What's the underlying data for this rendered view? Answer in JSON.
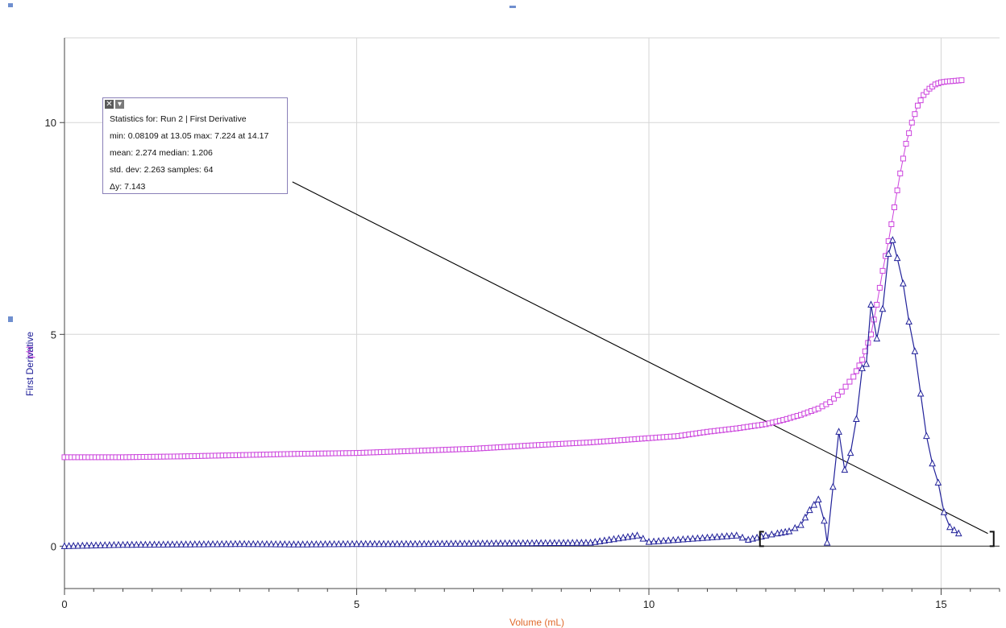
{
  "chart_data": {
    "type": "scatter",
    "xlabel": "Volume (mL)",
    "ylabel": "pH",
    "ylabel_secondary": "First Derivative",
    "xlim": [
      0,
      16
    ],
    "ylim": [
      -1,
      12
    ],
    "x_ticks": [
      0,
      5,
      10,
      15
    ],
    "y_ticks": [
      0,
      5,
      10
    ],
    "x_minor_step": 0.5,
    "grid": true,
    "colors": {
      "ph": "#cc44dd",
      "derivative": "#22229a",
      "tangent": "#000000"
    },
    "series": [
      {
        "name": "pH",
        "marker": "square",
        "x": [
          0,
          1,
          2,
          3,
          4,
          5,
          6,
          7,
          8,
          9,
          10,
          10.5,
          11,
          11.5,
          12,
          12.3,
          12.6,
          12.9,
          13.1,
          13.3,
          13.5,
          13.65,
          13.8,
          13.9,
          14.0,
          14.1,
          14.2,
          14.3,
          14.4,
          14.5,
          14.6,
          14.7,
          14.8,
          14.9,
          15.0,
          15.1,
          15.2,
          15.35
        ],
        "y": [
          2.1,
          2.1,
          2.12,
          2.15,
          2.18,
          2.2,
          2.25,
          2.3,
          2.38,
          2.45,
          2.55,
          2.6,
          2.7,
          2.78,
          2.88,
          2.98,
          3.1,
          3.25,
          3.4,
          3.65,
          4.0,
          4.4,
          5.0,
          5.7,
          6.5,
          7.2,
          8.0,
          8.8,
          9.5,
          10.0,
          10.4,
          10.65,
          10.8,
          10.9,
          10.95,
          10.97,
          10.98,
          11.0
        ]
      },
      {
        "name": "First Derivative",
        "marker": "triangle",
        "x": [
          0,
          1,
          2,
          3,
          4,
          5,
          6,
          7,
          8,
          9,
          9.8,
          10,
          10.5,
          11,
          11.5,
          11.7,
          12,
          12.2,
          12.4,
          12.6,
          12.75,
          12.9,
          13.0,
          13.05,
          13.15,
          13.25,
          13.35,
          13.45,
          13.55,
          13.65,
          13.72,
          13.8,
          13.9,
          14.0,
          14.1,
          14.17,
          14.25,
          14.35,
          14.45,
          14.55,
          14.65,
          14.75,
          14.85,
          14.95,
          15.05,
          15.15,
          15.3
        ],
        "y": [
          0,
          0.03,
          0.04,
          0.05,
          0.04,
          0.05,
          0.05,
          0.06,
          0.07,
          0.08,
          0.25,
          0.1,
          0.15,
          0.2,
          0.25,
          0.15,
          0.25,
          0.3,
          0.35,
          0.5,
          0.85,
          1.1,
          0.6,
          0.08,
          1.4,
          2.7,
          1.8,
          2.2,
          3.0,
          4.2,
          4.3,
          5.7,
          4.9,
          5.6,
          6.9,
          7.224,
          6.8,
          6.2,
          5.3,
          4.6,
          3.6,
          2.6,
          1.95,
          1.5,
          0.8,
          0.45,
          0.3
        ]
      }
    ],
    "tangent_line": {
      "x": [
        3.9,
        15.8
      ],
      "y": [
        8.6,
        0.3
      ]
    },
    "selection": {
      "x_start": 11.9,
      "x_end": 15.9
    },
    "stats": {
      "title": "Statistics for: Run 2 | First Derivative",
      "line1": "min: 0.08109 at 13.05 max: 7.224 at 14.17",
      "line2": "mean: 2.274 median: 1.206",
      "line3": "std. dev: 2.263 samples: 64",
      "line4": "Δy: 7.143",
      "close_glyph": "✕",
      "options_glyph": "▾"
    }
  }
}
